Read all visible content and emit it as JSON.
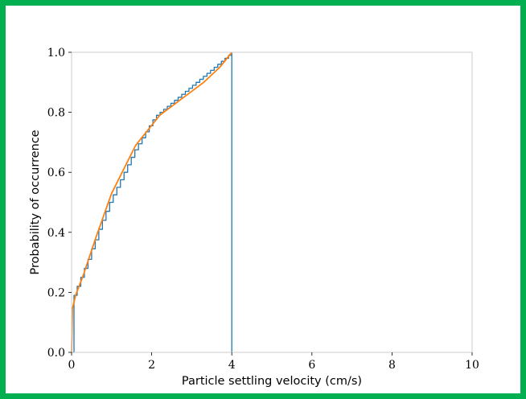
{
  "chart_data": {
    "type": "line",
    "title": "",
    "xlabel": "Particle settling velocity (cm/s)",
    "ylabel": "Probability of occurrence",
    "xlim": [
      0,
      10
    ],
    "ylim": [
      0,
      1
    ],
    "xticks": [
      0,
      2,
      4,
      6,
      8,
      10
    ],
    "yticks": [
      0.0,
      0.2,
      0.4,
      0.6,
      0.8,
      1.0
    ],
    "xtick_labels": [
      "0",
      "2",
      "4",
      "6",
      "8",
      "10"
    ],
    "ytick_labels": [
      "0.0",
      "0.2",
      "0.4",
      "0.6",
      "0.8",
      "1.0"
    ],
    "grid": false,
    "legend": "none",
    "series": [
      {
        "kind": "step",
        "color": "#1f77b4",
        "x": [
          0,
          0.06,
          0.14,
          0.23,
          0.32,
          0.41,
          0.5,
          0.59,
          0.68,
          0.77,
          0.86,
          0.95,
          1.04,
          1.13,
          1.22,
          1.31,
          1.4,
          1.49,
          1.58,
          1.67,
          1.76,
          1.85,
          1.94,
          2.03,
          2.12,
          2.21,
          2.3,
          2.39,
          2.48,
          2.57,
          2.66,
          2.75,
          2.84,
          2.93,
          3.02,
          3.11,
          3.2,
          3.29,
          3.38,
          3.47,
          3.56,
          3.65,
          3.74,
          3.83,
          3.92,
          4.0,
          4.0
        ],
        "y": [
          0,
          0.19,
          0.22,
          0.25,
          0.28,
          0.31,
          0.345,
          0.375,
          0.41,
          0.44,
          0.47,
          0.5,
          0.525,
          0.55,
          0.575,
          0.6,
          0.625,
          0.65,
          0.675,
          0.695,
          0.715,
          0.735,
          0.755,
          0.775,
          0.79,
          0.8,
          0.81,
          0.82,
          0.83,
          0.84,
          0.85,
          0.86,
          0.87,
          0.88,
          0.89,
          0.9,
          0.91,
          0.92,
          0.93,
          0.94,
          0.95,
          0.96,
          0.97,
          0.98,
          0.99,
          1.0,
          0.0
        ]
      },
      {
        "kind": "line",
        "color": "#ff7f0e",
        "x": [
          0,
          0.02,
          0.1,
          0.3,
          0.6,
          1.0,
          1.6,
          2.2,
          2.8,
          3.3,
          3.7,
          4.0
        ],
        "y": [
          0,
          0.145,
          0.19,
          0.26,
          0.38,
          0.53,
          0.69,
          0.79,
          0.85,
          0.9,
          0.95,
          1.0
        ]
      }
    ]
  }
}
